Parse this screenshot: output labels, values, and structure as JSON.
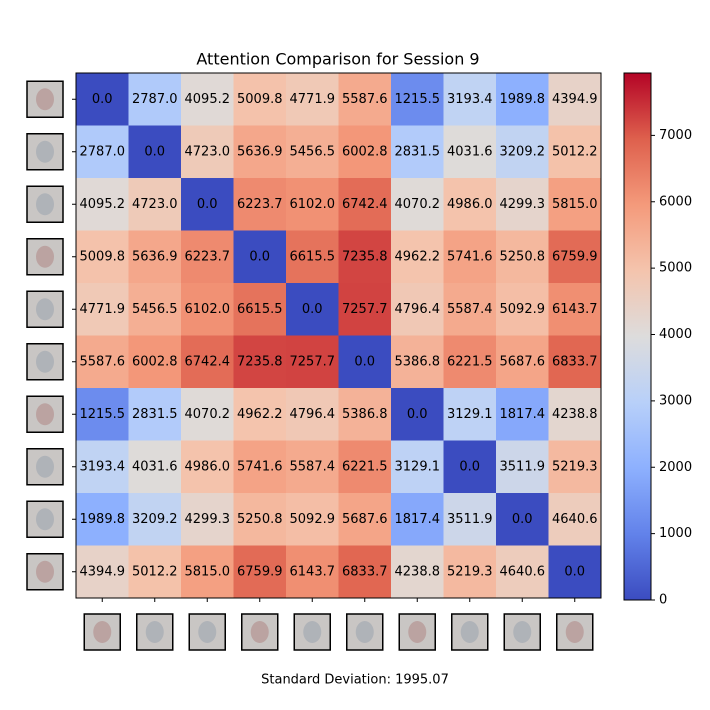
{
  "chart_data": {
    "type": "heatmap",
    "title": "Attention Comparison for Session 9",
    "footer": "Standard Deviation: 1995.07",
    "colormap": "coolwarm",
    "clim": [
      0,
      7940
    ],
    "cticks": [
      0,
      1000,
      2000,
      3000,
      4000,
      5000,
      6000,
      7000
    ],
    "values": [
      [
        0.0,
        2787.0,
        4095.2,
        5009.8,
        4771.9,
        5587.6,
        1215.5,
        3193.4,
        1989.8,
        4394.9
      ],
      [
        2787.0,
        0.0,
        4723.0,
        5636.9,
        5456.5,
        6002.8,
        2831.5,
        4031.6,
        3209.2,
        5012.2
      ],
      [
        4095.2,
        4723.0,
        0.0,
        6223.7,
        6102.0,
        6742.4,
        4070.2,
        4986.0,
        4299.3,
        5815.0
      ],
      [
        5009.8,
        5636.9,
        6223.7,
        0.0,
        6615.5,
        7235.8,
        4962.2,
        5741.6,
        5250.8,
        6759.9
      ],
      [
        4771.9,
        5456.5,
        6102.0,
        6615.5,
        0.0,
        7257.7,
        4796.4,
        5587.4,
        5092.9,
        6143.7
      ],
      [
        5587.6,
        6002.8,
        6742.4,
        7235.8,
        7257.7,
        0.0,
        5386.8,
        6221.5,
        5687.6,
        6833.7
      ],
      [
        1215.5,
        2831.5,
        4070.2,
        4962.2,
        4796.4,
        5386.8,
        0.0,
        3129.1,
        1817.4,
        4238.8
      ],
      [
        3193.4,
        4031.6,
        4986.0,
        5741.6,
        5587.4,
        6221.5,
        3129.1,
        0.0,
        3511.9,
        5219.3
      ],
      [
        1989.8,
        3209.2,
        4299.3,
        5250.8,
        5092.9,
        5687.6,
        1817.4,
        3511.9,
        0.0,
        4640.6
      ],
      [
        4394.9,
        5012.2,
        5815.0,
        6759.9,
        6143.7,
        6833.7,
        4238.8,
        5219.3,
        4640.6,
        0.0
      ]
    ],
    "value_labels": [
      [
        "0.0",
        "2787.0",
        "4095.2",
        "5009.8",
        "4771.9",
        "5587.6",
        "1215.5",
        "3193.4",
        "1989.8",
        "4394.9"
      ],
      [
        "2787.0",
        "0.0",
        "4723.0",
        "5636.9",
        "5456.5",
        "6002.8",
        "2831.5",
        "4031.6",
        "3209.2",
        "5012.2"
      ],
      [
        "4095.2",
        "4723.0",
        "0.0",
        "6223.7",
        "6102.0",
        "6742.4",
        "4070.2",
        "4986.0",
        "4299.3",
        "5815.0"
      ],
      [
        "5009.8",
        "5636.9",
        "6223.7",
        "0.0",
        "6615.5",
        "7235.8",
        "4962.2",
        "5741.6",
        "5250.8",
        "6759.9"
      ],
      [
        "4771.9",
        "5456.5",
        "6102.0",
        "6615.5",
        "0.0",
        "7257.7",
        "4796.4",
        "5587.4",
        "5092.9",
        "6143.7"
      ],
      [
        "5587.6",
        "6002.8",
        "6742.4",
        "7235.8",
        "7257.7",
        "0.0",
        "5386.8",
        "6221.5",
        "5687.6",
        "6833.7"
      ],
      [
        "1215.5",
        "2831.5",
        "4070.2",
        "4962.2",
        "4796.4",
        "5386.8",
        "0.0",
        "3129.1",
        "1817.4",
        "4238.8"
      ],
      [
        "3193.4",
        "4031.6",
        "4986.0",
        "5741.6",
        "5587.4",
        "6221.5",
        "3129.1",
        "0.0",
        "3511.9",
        "5219.3"
      ],
      [
        "1989.8",
        "3209.2",
        "4299.3",
        "5250.8",
        "5092.9",
        "5687.6",
        "1817.4",
        "3511.9",
        "0.0",
        "4640.6"
      ],
      [
        "4394.9",
        "5012.2",
        "5815.0",
        "6759.9",
        "6143.7",
        "6833.7",
        "4238.8",
        "5219.3",
        "4640.6",
        "0.0"
      ]
    ]
  }
}
